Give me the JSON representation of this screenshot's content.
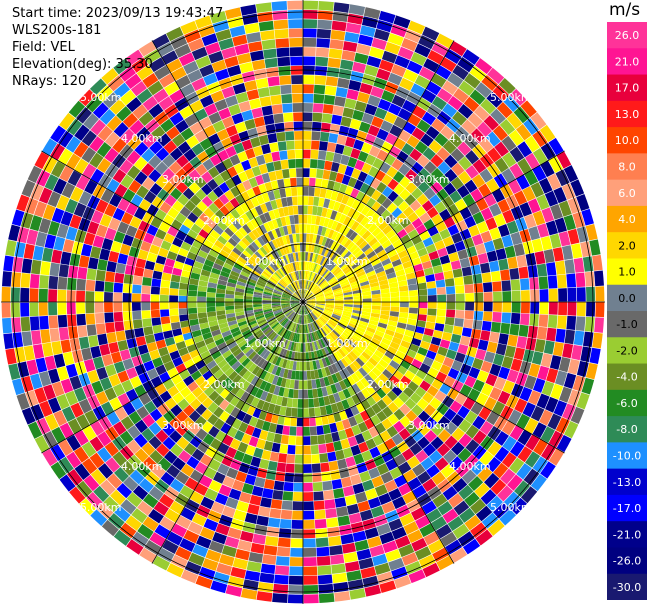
{
  "header": {
    "start_time": "Start time: 2023/09/13 19:43:47",
    "instrument": "WLS200s-181",
    "field": "Field: VEL",
    "elevation": "Elevation(deg): 35.30",
    "nrays": "NRays: 120"
  },
  "colorbar": {
    "unit": "m/s",
    "ticks": [
      "26.0",
      "21.0",
      "17.0",
      "13.0",
      "10.0",
      "8.0",
      "6.0",
      "4.0",
      "2.0",
      "1.0",
      "0.0",
      "-1.0",
      "-2.0",
      "-4.0",
      "-6.0",
      "-8.0",
      "-10.0",
      "-13.0",
      "-17.0",
      "-21.0",
      "-26.0",
      "-30.0"
    ],
    "colors": [
      "#ff3399",
      "#ff1493",
      "#e8003c",
      "#ff1a1a",
      "#ff4500",
      "#ff7f50",
      "#ffa07a",
      "#ffa500",
      "#ffd700",
      "#ffff00",
      "#708090",
      "#696969",
      "#9acd32",
      "#6b8e23",
      "#228b22",
      "#2e8b57",
      "#1e90ff",
      "#0000cd",
      "#0000ff",
      "#00008b",
      "#000080",
      "#191970"
    ]
  },
  "chart_data": {
    "type": "ppi",
    "field": "VEL",
    "nrays": 120,
    "range_rings": [
      {
        "label": "1.00km"
      },
      {
        "label": "2.00km"
      },
      {
        "label": "3.00km"
      },
      {
        "label": "4.00km"
      },
      {
        "label": "5.00km"
      }
    ],
    "clim": [
      -30,
      26
    ]
  }
}
